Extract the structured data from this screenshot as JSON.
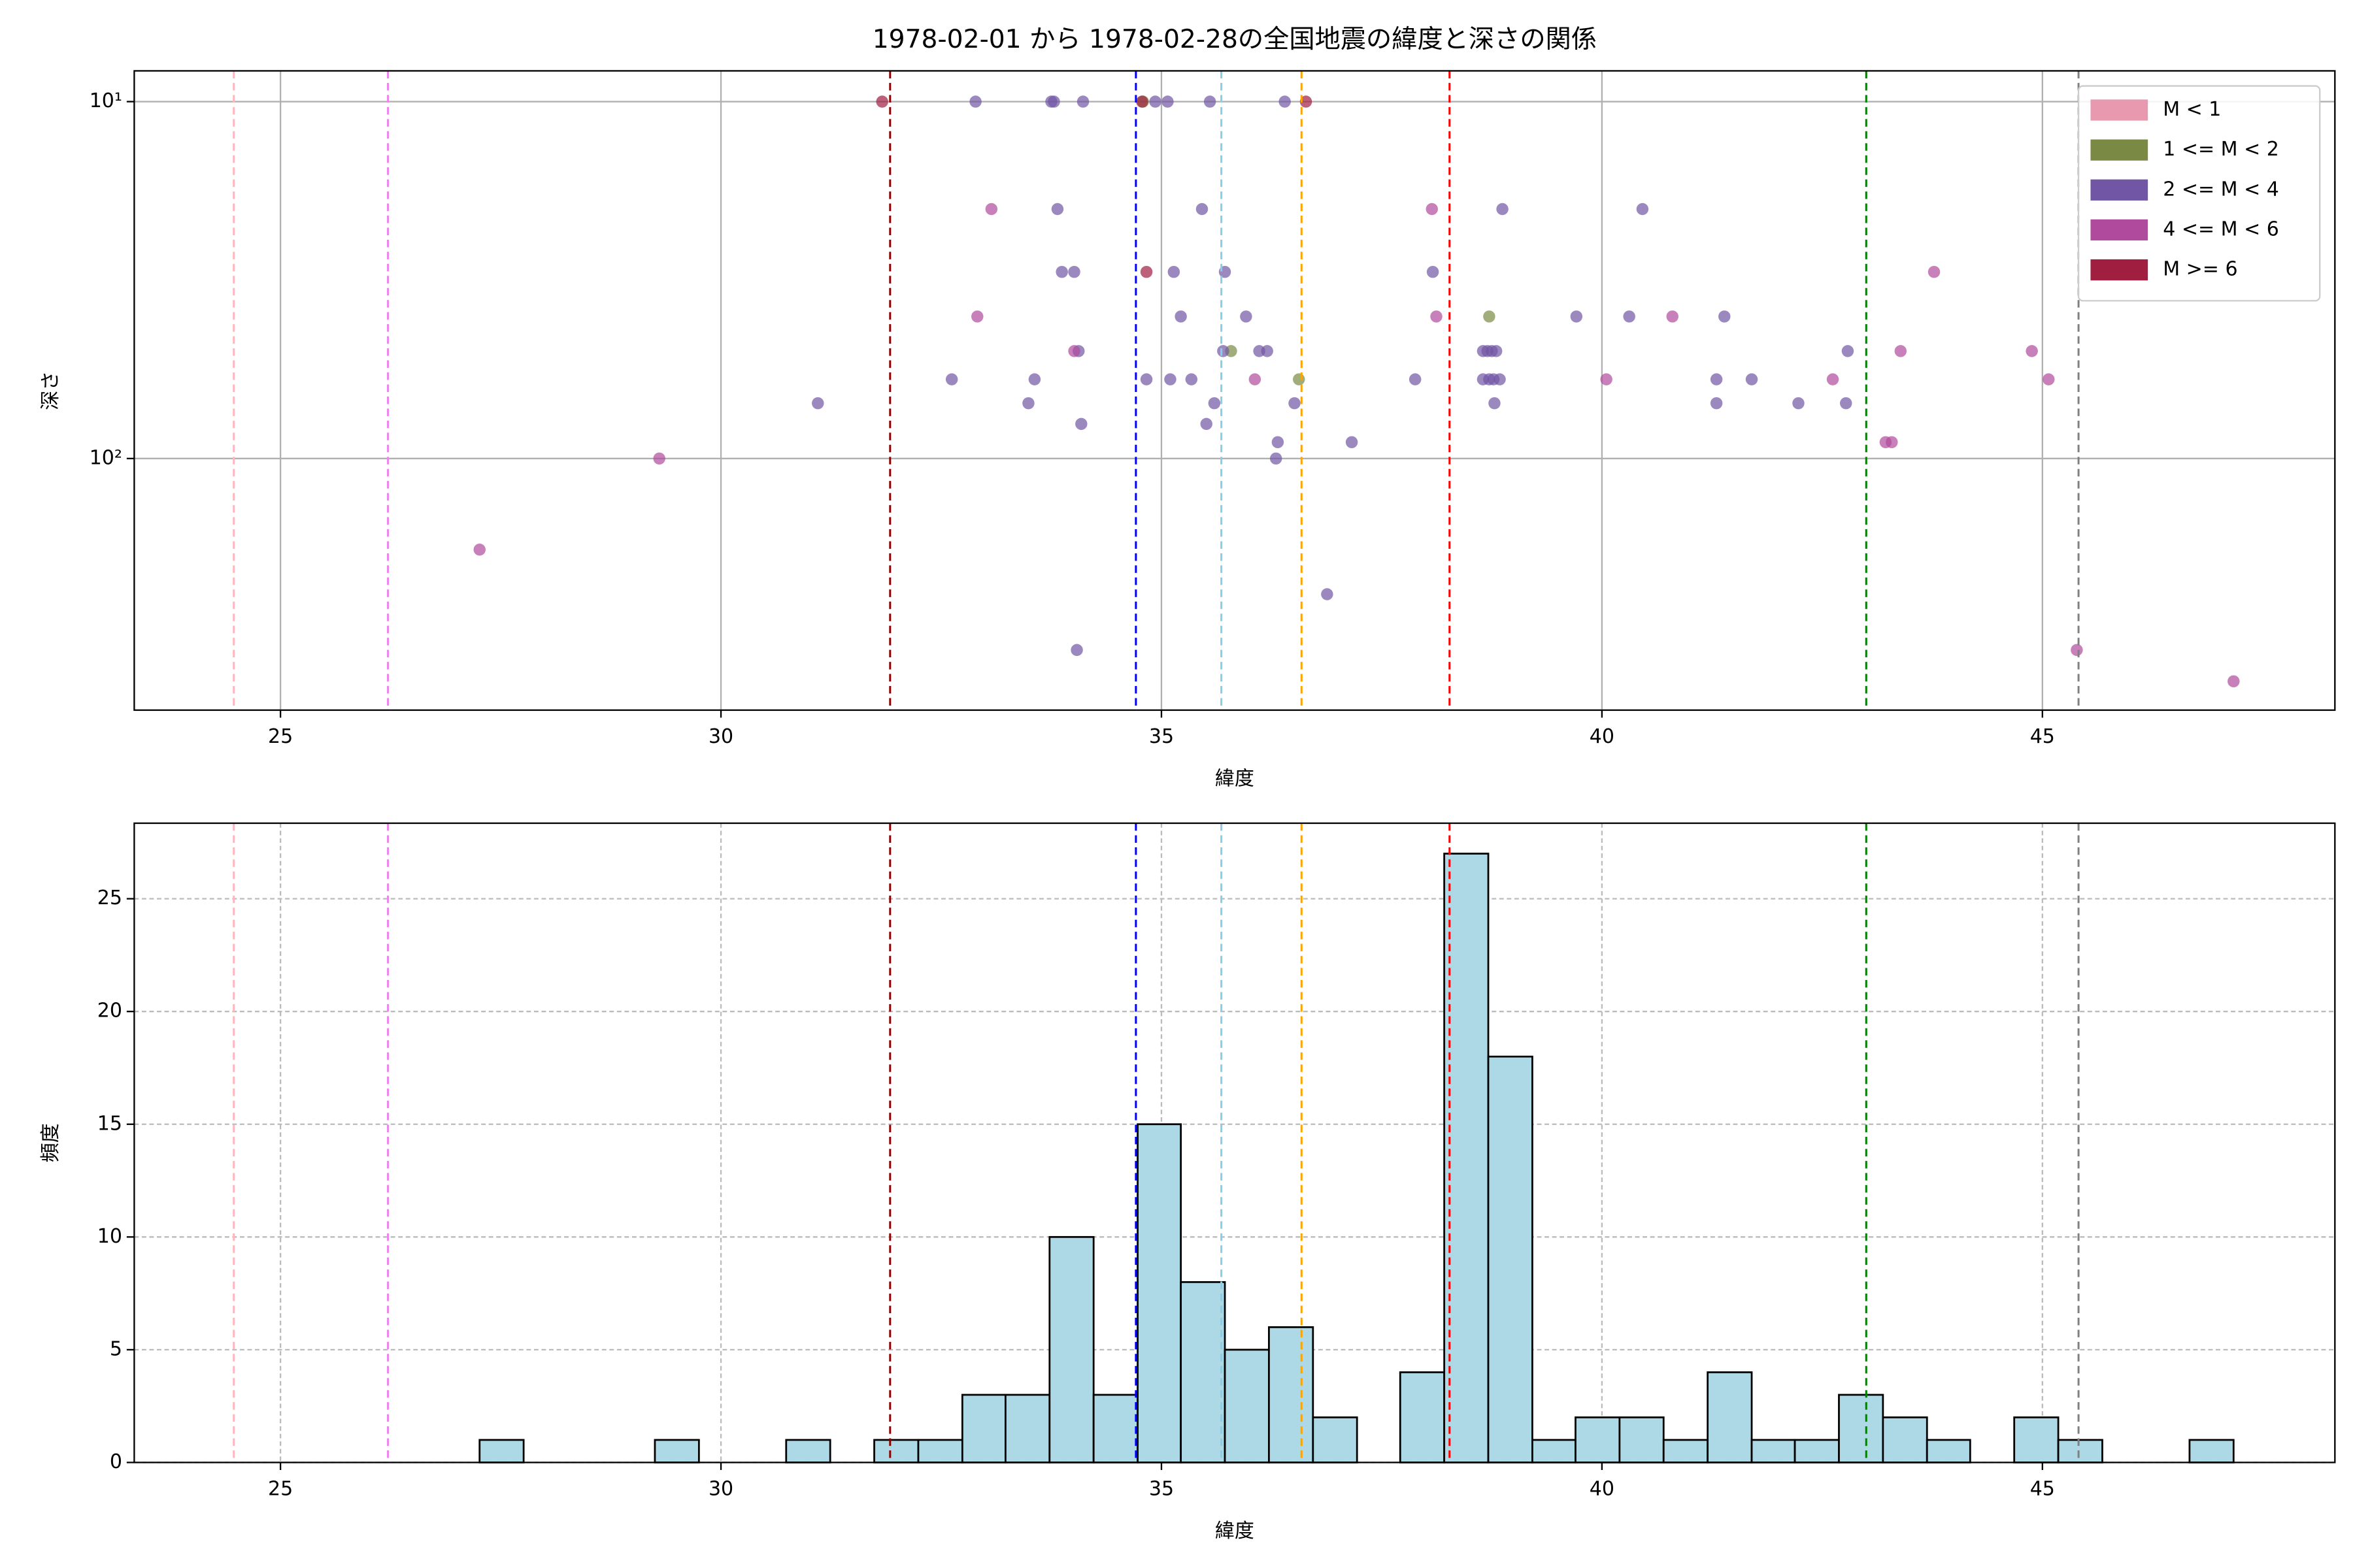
{
  "chart_data": [
    {
      "type": "scatter",
      "title": "1978-02-01 から 1978-02-28の全国地震の緯度と深さの関係",
      "x_label": "緯度",
      "y_label": "深さ",
      "xlim": [
        23.34,
        48.32
      ],
      "xticks": [
        25,
        30,
        35,
        40,
        45
      ],
      "ylim": [
        8.2,
        507
      ],
      "log_y": true,
      "invert_y": true,
      "yticks": [
        {
          "value": 10,
          "label": "10¹"
        },
        {
          "value": 100,
          "label": "10²"
        }
      ],
      "grid": "solid",
      "legend": "upper right",
      "reference_lines": [
        {
          "x": 24.47,
          "color": "#ffb6c1"
        },
        {
          "x": 26.22,
          "color": "#ee82ee"
        },
        {
          "x": 31.92,
          "color": "#8b0000"
        },
        {
          "x": 34.71,
          "color": "#0000ff"
        },
        {
          "x": 35.68,
          "color": "#87ceeb"
        },
        {
          "x": 36.59,
          "color": "#ffa500"
        },
        {
          "x": 38.27,
          "color": "#ff0000"
        },
        {
          "x": 43.0,
          "color": "#008000"
        },
        {
          "x": 45.41,
          "color": "#808080"
        }
      ],
      "series": [
        {
          "name": "M < 1",
          "color": "#e899b0",
          "x": [],
          "y": []
        },
        {
          "name": "1 <= M < 2",
          "color": "#7a8a45",
          "x": [
            34.79,
            38.72,
            35.79,
            36.56
          ],
          "y": [
            10,
            40,
            50,
            60
          ]
        },
        {
          "name": "2 <= M < 4",
          "color": "#7056a4",
          "x": [
            32.89,
            33.75,
            33.78,
            34.11,
            34.93,
            35.07,
            35.55,
            36.4,
            33.82,
            38.87,
            40.46,
            35.46,
            33.87,
            34.01,
            35.14,
            35.72,
            38.08,
            35.22,
            35.96,
            39.71,
            40.31,
            41.39,
            34.06,
            35.7,
            36.11,
            36.2,
            38.65,
            38.7,
            38.75,
            38.8,
            42.79,
            32.62,
            33.56,
            34.83,
            35.1,
            35.34,
            37.88,
            38.65,
            38.72,
            38.77,
            38.84,
            41.3,
            41.7,
            31.1,
            33.49,
            35.6,
            36.51,
            38.78,
            41.3,
            42.23,
            42.77,
            34.09,
            35.51,
            36.32,
            37.16,
            36.3,
            36.88,
            34.04
          ],
          "y": [
            10,
            10,
            10,
            10,
            10,
            10,
            10,
            10,
            20,
            20,
            20,
            20,
            30,
            30,
            30,
            30,
            30,
            40,
            40,
            40,
            40,
            40,
            50,
            50,
            50,
            50,
            50,
            50,
            50,
            50,
            50,
            60,
            60,
            60,
            60,
            60,
            60,
            60,
            60,
            60,
            60,
            60,
            60,
            70,
            70,
            70,
            70,
            70,
            70,
            70,
            70,
            80,
            80,
            90,
            90,
            100,
            240,
            344
          ]
        },
        {
          "name": "4 <= M < 6",
          "color": "#b04a9c",
          "x": [
            33.07,
            38.07,
            43.77,
            32.91,
            38.12,
            40.8,
            34.01,
            43.39,
            44.88,
            36.06,
            40.05,
            42.62,
            45.07,
            43.22,
            43.29,
            29.3,
            27.26,
            45.39,
            47.17
          ],
          "y": [
            20,
            20,
            30,
            40,
            40,
            40,
            50,
            50,
            50,
            60,
            60,
            60,
            60,
            90,
            90,
            100,
            180,
            344,
            421
          ]
        },
        {
          "name": "M >= 6",
          "color": "#a01e40",
          "x": [
            31.83,
            34.78,
            36.64,
            34.83
          ],
          "y": [
            10,
            10,
            10,
            30
          ]
        }
      ]
    },
    {
      "type": "histogram",
      "x_label": "緯度",
      "y_label": "頻度",
      "xlim": [
        23.34,
        48.32
      ],
      "xticks": [
        25,
        30,
        35,
        40,
        45
      ],
      "ylim": [
        0,
        28.35
      ],
      "yticks": [
        0,
        5,
        10,
        15,
        20,
        25
      ],
      "grid": "dashed",
      "color": "#add8e6",
      "edge_color": "#000000",
      "reference_lines": [
        {
          "x": 24.47,
          "color": "#ffb6c1"
        },
        {
          "x": 26.22,
          "color": "#ee82ee"
        },
        {
          "x": 31.92,
          "color": "#8b0000"
        },
        {
          "x": 34.71,
          "color": "#0000ff"
        },
        {
          "x": 35.68,
          "color": "#87ceeb"
        },
        {
          "x": 36.59,
          "color": "#ffa500"
        },
        {
          "x": 38.27,
          "color": "#ff0000"
        },
        {
          "x": 43.0,
          "color": "#008000"
        },
        {
          "x": 45.41,
          "color": "#808080"
        }
      ],
      "bins": [
        27.26,
        27.76,
        28.26,
        28.75,
        29.25,
        29.75,
        30.25,
        30.74,
        31.24,
        31.74,
        32.24,
        32.74,
        33.23,
        33.73,
        34.23,
        34.73,
        35.22,
        35.72,
        36.22,
        36.72,
        37.22,
        37.71,
        38.21,
        38.71,
        39.21,
        39.7,
        40.2,
        40.7,
        41.2,
        41.7,
        42.19,
        42.69,
        43.19,
        43.69,
        44.18,
        44.68,
        45.18,
        45.68,
        46.18,
        46.67,
        47.17
      ],
      "values": [
        1,
        0,
        0,
        0,
        1,
        0,
        0,
        1,
        0,
        1,
        1,
        3,
        3,
        10,
        3,
        15,
        8,
        5,
        6,
        2,
        0,
        4,
        27,
        18,
        1,
        2,
        2,
        1,
        4,
        1,
        1,
        3,
        2,
        1,
        0,
        2,
        1,
        0,
        0,
        1
      ]
    }
  ]
}
